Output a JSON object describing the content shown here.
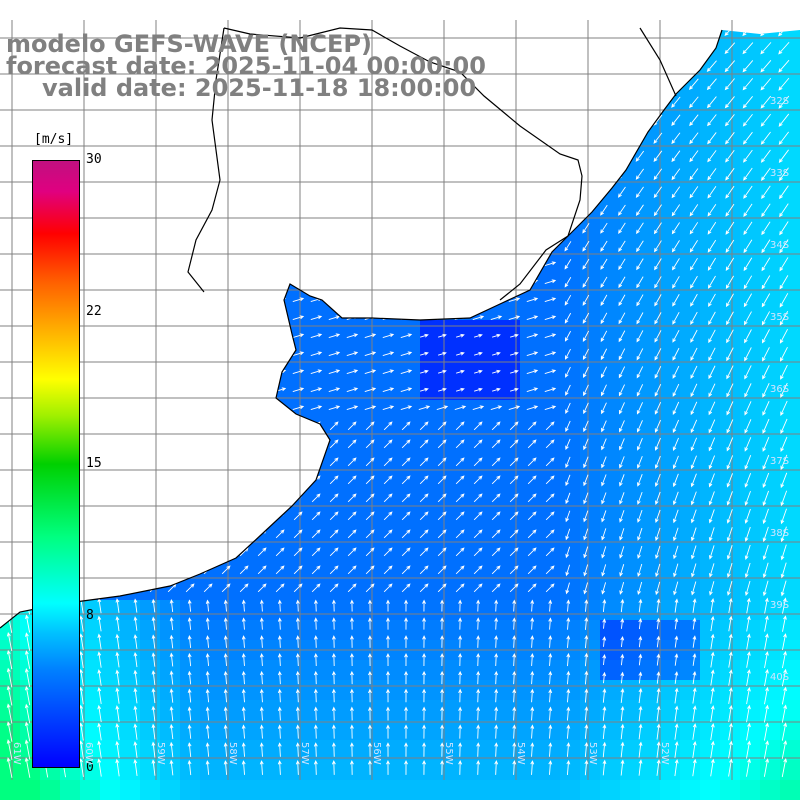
{
  "title": {
    "line1": "modelo GEFS-WAVE (NCEP)",
    "line2": "forecast date: 2025-11-04 00:00:00",
    "line3": "valid date: 2025-11-18 18:00:00"
  },
  "colorbar": {
    "unit": "[m/s]",
    "min": 0,
    "max": 30,
    "ticks": [
      "30",
      "22",
      "15",
      "8",
      "0"
    ],
    "tick_values": [
      30,
      22,
      15,
      8,
      0
    ]
  },
  "lat_labels": [
    "32S",
    "33S",
    "34S",
    "35S",
    "36S",
    "37S",
    "38S",
    "39S",
    "40S"
  ],
  "lon_labels": [
    "61W",
    "60W",
    "59W",
    "58W",
    "57W",
    "56W",
    "55W",
    "54W",
    "53W",
    "52W"
  ],
  "colors": {
    "land": "#ffffff",
    "coast": "#000000",
    "grid": "#808080",
    "arrow": "#ffffff",
    "title": "#808080"
  }
}
